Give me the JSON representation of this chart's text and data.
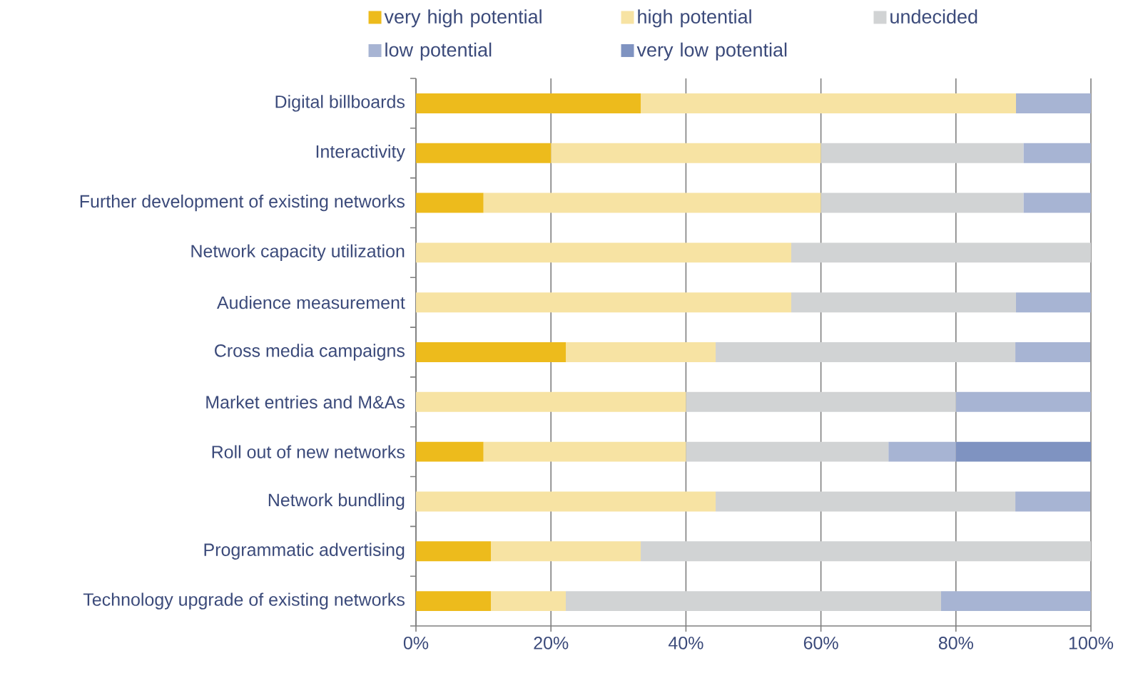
{
  "chart_data": {
    "type": "bar",
    "orientation": "horizontal",
    "stacked": true,
    "categories": [
      "Digital billboards",
      "Interactivity",
      "Further development of existing networks",
      "Network capacity utilization",
      "Audience measurement",
      "Cross media campaigns",
      "Market entries and M&As",
      "Roll out of new networks",
      "Network bundling",
      "Programmatic advertising",
      "Technology upgrade of existing networks"
    ],
    "series": [
      {
        "name": "very high potential",
        "color": "#edbb1c",
        "values": [
          33.3,
          20,
          10,
          0,
          0,
          22.2,
          0,
          10,
          0,
          11.1,
          11.1
        ]
      },
      {
        "name": "high potential",
        "color": "#f7e3a3",
        "values": [
          55.6,
          40,
          50,
          55.6,
          55.6,
          22.2,
          40,
          30,
          44.4,
          22.2,
          11.1
        ]
      },
      {
        "name": "undecided",
        "color": "#d1d3d4",
        "values": [
          0,
          30,
          30,
          44.4,
          33.3,
          44.4,
          40,
          30,
          44.4,
          66.7,
          55.6
        ]
      },
      {
        "name": "low potential",
        "color": "#a7b4d3",
        "values": [
          11.1,
          10,
          10,
          0,
          11.1,
          11.1,
          20,
          10,
          11.1,
          0,
          22.2
        ]
      },
      {
        "name": "very low potential",
        "color": "#7f93c1",
        "values": [
          0,
          0,
          0,
          0,
          0,
          0,
          0,
          20,
          0,
          0,
          0
        ]
      }
    ],
    "xlim": [
      0,
      100
    ],
    "xticks": [
      {
        "value": 0,
        "label": "0%"
      },
      {
        "value": 20,
        "label": "20%"
      },
      {
        "value": 40,
        "label": "40%"
      },
      {
        "value": 60,
        "label": "60%"
      },
      {
        "value": 80,
        "label": "80%"
      },
      {
        "value": 100,
        "label": "100%"
      }
    ],
    "grid": "x",
    "legend": "top"
  }
}
